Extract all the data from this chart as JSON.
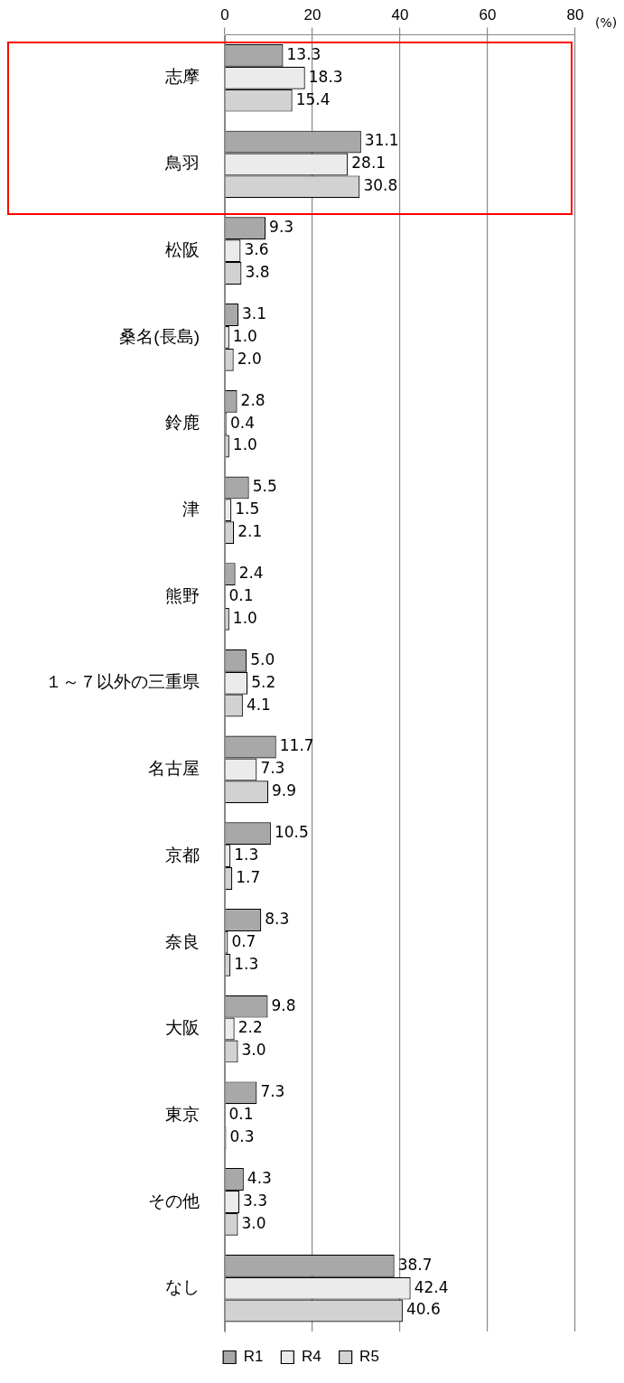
{
  "chart_data": {
    "type": "bar",
    "orientation": "horizontal",
    "xlabel": "(%)",
    "categories": [
      "志摩",
      "鳥羽",
      "松阪",
      "桑名(長島)",
      "鈴鹿",
      "津",
      "熊野",
      "１～７以外の三重県",
      "名古屋",
      "京都",
      "奈良",
      "大阪",
      "東京",
      "その他",
      "なし"
    ],
    "series": [
      {
        "name": "R1",
        "color": "#a8a8a8",
        "values": [
          13.3,
          31.1,
          9.3,
          3.1,
          2.8,
          5.5,
          2.4,
          5.0,
          11.7,
          10.5,
          8.3,
          9.8,
          7.3,
          4.3,
          38.7
        ],
        "value_labels": [
          "13.3",
          "31.1",
          "9.3",
          "3.1",
          "2.8",
          "5.5",
          "2.4",
          "5.0",
          "11.7",
          "10.5",
          "8.3",
          "9.8",
          "7.3",
          "4.3",
          "38.7"
        ]
      },
      {
        "name": "R4",
        "color": "#ebebeb",
        "values": [
          18.3,
          28.1,
          3.6,
          1.0,
          0.4,
          1.5,
          0.1,
          5.2,
          7.3,
          1.3,
          0.7,
          2.2,
          0.1,
          3.3,
          42.4
        ],
        "value_labels": [
          "18.3",
          "28.1",
          "3.6",
          "1.0",
          "0.4",
          "1.5",
          "0.1",
          "5.2",
          "7.3",
          "1.3",
          "0.7",
          "2.2",
          "0.1",
          "3.3",
          "42.4"
        ]
      },
      {
        "name": "R5",
        "color": "#d2d2d2",
        "values": [
          15.4,
          30.8,
          3.8,
          2.0,
          1.0,
          2.1,
          1.0,
          4.1,
          9.9,
          1.7,
          1.3,
          3.0,
          0.3,
          3.0,
          40.6
        ],
        "value_labels": [
          "15.4",
          "30.8",
          "3.8",
          "2.0",
          "1.0",
          "2.1",
          "1.0",
          "4.1",
          "9.9",
          "1.7",
          "1.3",
          "3.0",
          "0.3",
          "3.0",
          "40.6"
        ]
      }
    ],
    "xlim": [
      0,
      80
    ],
    "xticks": [
      0,
      20,
      40,
      60,
      80
    ],
    "grid": "x",
    "legend": "bottom"
  }
}
